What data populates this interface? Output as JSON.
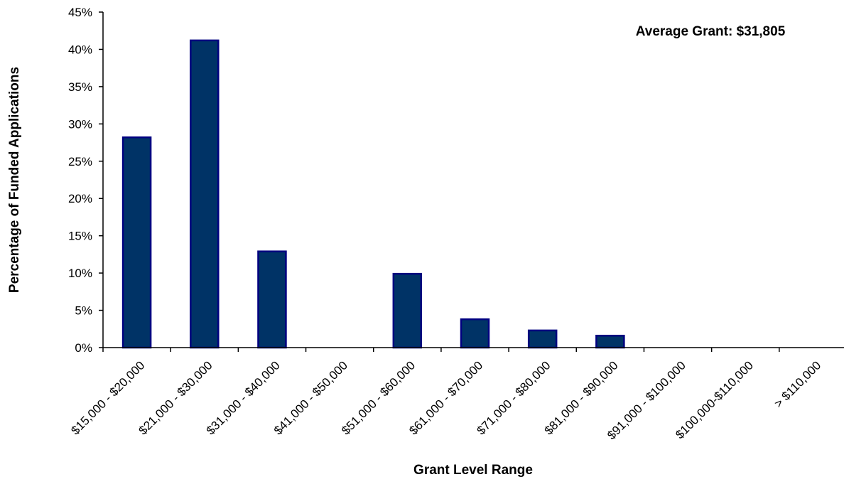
{
  "chart_data": {
    "type": "bar",
    "title": "",
    "xlabel": "Grant Level Range",
    "ylabel": "Percentage of Funded Applications",
    "annotation": "Average Grant: $31,805",
    "categories": [
      "$15,000 - $20,000",
      "$21,000 - $30,000",
      "$31,000 - $40,000",
      "$41,000 - $50,000",
      "$51,000 - $60,000",
      "$61,000 - $70,000",
      "$71,000 - $80,000",
      "$81,000 - $90,000",
      "$91,000 - $100,000",
      "$100,000-$110,000",
      "> $110,000"
    ],
    "values": [
      28.2,
      41.2,
      12.9,
      0,
      9.9,
      3.8,
      2.3,
      1.6,
      0,
      0,
      0
    ],
    "ylim": [
      0,
      45
    ],
    "yticks": [
      0,
      5,
      10,
      15,
      20,
      25,
      30,
      35,
      40,
      45
    ],
    "ytick_labels": [
      "0%",
      "5%",
      "10%",
      "15%",
      "20%",
      "25%",
      "30%",
      "35%",
      "40%",
      "45%"
    ],
    "grid": false,
    "legend": "none",
    "colors": {
      "bar_fill": "#003366",
      "bar_stroke": "#000080",
      "axis": "#000000"
    }
  }
}
